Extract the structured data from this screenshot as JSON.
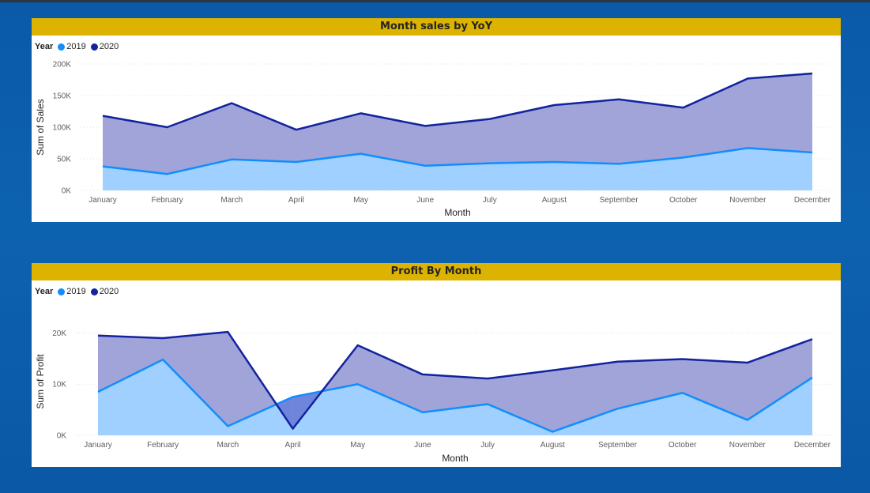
{
  "colors": {
    "s2019_line": "#118dff",
    "s2019_fill": "#9fd0ff",
    "s2020_line": "#12239e",
    "s2020_fill": "#a0a4d8",
    "overlap_fill": "#6f85dc",
    "title_bar": "#dbb300"
  },
  "legend": {
    "title": "Year",
    "items": [
      "2019",
      "2020"
    ]
  },
  "chart_data": [
    {
      "type": "area",
      "title": "Month sales by YoY",
      "xlabel": "Month",
      "ylabel": "Sum of Sales",
      "categories": [
        "January",
        "February",
        "March",
        "April",
        "May",
        "June",
        "July",
        "August",
        "September",
        "October",
        "November",
        "December"
      ],
      "ylim": [
        0,
        200000
      ],
      "yticks": [
        0,
        50000,
        100000,
        150000,
        200000
      ],
      "ytick_labels": [
        "0K",
        "50K",
        "100K",
        "150K",
        "200K"
      ],
      "grid": true,
      "legend_position": "top-left",
      "series": [
        {
          "name": "2019",
          "values": [
            38000,
            26000,
            49000,
            45000,
            58000,
            39000,
            43000,
            45000,
            42000,
            52000,
            67000,
            60000
          ]
        },
        {
          "name": "2020",
          "values": [
            118000,
            100000,
            138000,
            96000,
            122000,
            102000,
            113000,
            135000,
            144000,
            131000,
            177000,
            185000
          ]
        }
      ]
    },
    {
      "type": "area",
      "title": "Profit By Month",
      "xlabel": "Month",
      "ylabel": "Sum of Profit",
      "categories": [
        "January",
        "February",
        "March",
        "April",
        "May",
        "June",
        "July",
        "August",
        "September",
        "October",
        "November",
        "December"
      ],
      "ylim": [
        0,
        21000
      ],
      "yticks": [
        0,
        10000,
        20000
      ],
      "ytick_labels": [
        "0K",
        "10K",
        "20K"
      ],
      "grid": true,
      "legend_position": "top-left",
      "series": [
        {
          "name": "2019",
          "values": [
            8500,
            14800,
            1800,
            7500,
            10000,
            4500,
            6100,
            700,
            5200,
            8300,
            3000,
            11300
          ]
        },
        {
          "name": "2020",
          "values": [
            19500,
            19000,
            20200,
            1300,
            17600,
            11900,
            11100,
            12700,
            14400,
            14900,
            14200,
            18800
          ]
        }
      ]
    }
  ]
}
